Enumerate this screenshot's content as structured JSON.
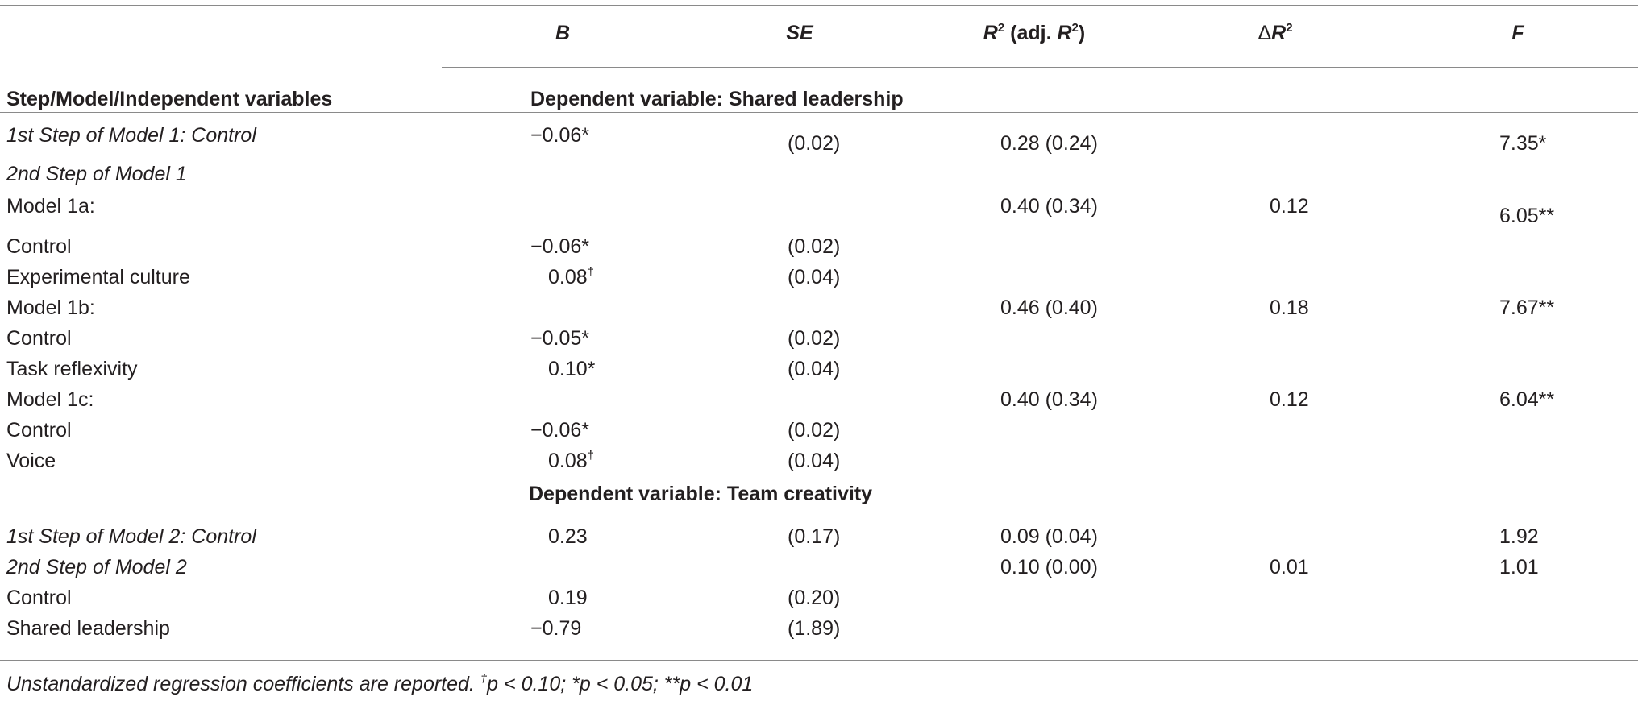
{
  "header": {
    "col_b": "B",
    "col_se": "SE",
    "col_r2_main": "R",
    "col_r2_sup": "2",
    "col_r2_mid": " (adj. ",
    "col_r2_main2": "R",
    "col_r2_sup2": "2",
    "col_r2_end": ")",
    "col_dr2_delta": "Δ",
    "col_dr2_main": "R",
    "col_dr2_sup": "2",
    "col_f": "F",
    "row_header": "Step/Model/Independent variables"
  },
  "sections": {
    "shared": "Dependent variable: Shared leadership",
    "team": "Dependent variable: Team creativity"
  },
  "rows": [
    {
      "label": "1st Step of Model 1: Control",
      "b": "−0.06*",
      "se": "(0.02)",
      "r2": "0.28 (0.24)",
      "dr2": "",
      "f": "7.35*"
    },
    {
      "label": "2nd Step of Model 1",
      "b": "",
      "se": "",
      "r2": "",
      "dr2": "",
      "f": ""
    },
    {
      "label": "Model 1a:",
      "b": "",
      "se": "",
      "r2": "0.40 (0.34)",
      "dr2": "0.12",
      "f": "6.05**"
    },
    {
      "label": "Control",
      "b": "−0.06*",
      "se": "(0.02)",
      "r2": "",
      "dr2": "",
      "f": ""
    },
    {
      "label": "Experimental culture",
      "b": "0.08",
      "b_sup": "†",
      "se": "(0.04)",
      "r2": "",
      "dr2": "",
      "f": ""
    },
    {
      "label": "Model 1b:",
      "b": "",
      "se": "",
      "r2": "0.46 (0.40)",
      "dr2": "0.18",
      "f": "7.67**"
    },
    {
      "label": "Control",
      "b": "−0.05*",
      "se": "(0.02)",
      "r2": "",
      "dr2": "",
      "f": ""
    },
    {
      "label": "Task reflexivity",
      "b": "0.10*",
      "se": "(0.04)",
      "r2": "",
      "dr2": "",
      "f": ""
    },
    {
      "label": "Model 1c:",
      "b": "",
      "se": "",
      "r2": "0.40 (0.34)",
      "dr2": "0.12",
      "f": "6.04**"
    },
    {
      "label": "Control",
      "b": "−0.06*",
      "se": "(0.02)",
      "r2": "",
      "dr2": "",
      "f": ""
    },
    {
      "label": "Voice",
      "b": "0.08",
      "b_sup": "†",
      "se": "(0.04)",
      "r2": "",
      "dr2": "",
      "f": ""
    },
    {
      "label": "1st Step of Model 2: Control",
      "b": "0.23",
      "se": "(0.17)",
      "r2": "0.09 (0.04)",
      "dr2": "",
      "f": "1.92"
    },
    {
      "label": "2nd Step of Model 2",
      "b": "",
      "se": "",
      "r2": "0.10 (0.00)",
      "dr2": "0.01",
      "f": "1.01"
    },
    {
      "label": "Control",
      "b": "0.19",
      "se": "(0.20)",
      "r2": "",
      "dr2": "",
      "f": ""
    },
    {
      "label": "Shared leadership",
      "b": "−0.79",
      "se": "(1.89)",
      "r2": "",
      "dr2": "",
      "f": ""
    }
  ],
  "footnote": {
    "part1": "Unstandardized regression coefficients are reported. ",
    "dagger": "†",
    "part2": "p < 0.10; *p < 0.05; **p < 0.01"
  }
}
